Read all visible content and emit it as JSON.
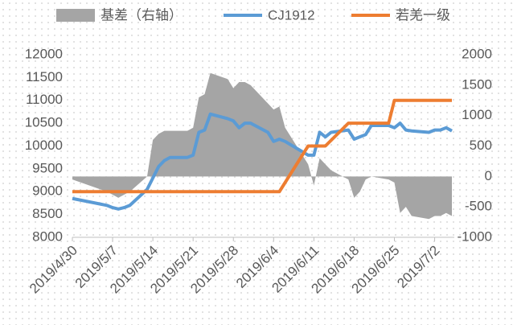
{
  "chart_data": {
    "type": "combo",
    "x": [
      "2019/4/30",
      "2019/5/6",
      "2019/5/7",
      "2019/5/8",
      "2019/5/9",
      "2019/5/10",
      "2019/5/13",
      "2019/5/14",
      "2019/5/15",
      "2019/5/16",
      "2019/5/17",
      "2019/5/20",
      "2019/5/21",
      "2019/5/22",
      "2019/5/23",
      "2019/5/24",
      "2019/5/27",
      "2019/5/28",
      "2019/5/29",
      "2019/5/30",
      "2019/5/31",
      "2019/6/3",
      "2019/6/4",
      "2019/6/5",
      "2019/6/6",
      "2019/6/10",
      "2019/6/11",
      "2019/6/12",
      "2019/6/13",
      "2019/6/14",
      "2019/6/17",
      "2019/6/18",
      "2019/6/19",
      "2019/6/20",
      "2019/6/21",
      "2019/6/24",
      "2019/6/25",
      "2019/6/26",
      "2019/6/27",
      "2019/6/28",
      "2019/7/1",
      "2019/7/2",
      "2019/7/3",
      "2019/7/4",
      "2019/7/5"
    ],
    "series": [
      {
        "name": "基差（右轴）",
        "kind": "area",
        "axis": "y2",
        "color": "#a5a5a5",
        "values": [
          -50,
          -250,
          -300,
          -350,
          -300,
          -250,
          0,
          600,
          700,
          750,
          750,
          750,
          800,
          1300,
          1350,
          1700,
          1600,
          1450,
          1550,
          1550,
          1500,
          1200,
          1100,
          1150,
          800,
          200,
          -150,
          300,
          200,
          100,
          -50,
          -350,
          -250,
          -50,
          0,
          -50,
          -100,
          -600,
          -500,
          -650,
          -700,
          -650,
          -650,
          -600,
          -650
        ]
      },
      {
        "name": "CJ1912",
        "kind": "line",
        "color": "#5b9bd5",
        "values": [
          8850,
          8700,
          8650,
          8620,
          8650,
          8700,
          9050,
          9300,
          9550,
          9680,
          9750,
          9750,
          9800,
          10300,
          10350,
          10700,
          10600,
          10550,
          10400,
          10500,
          10500,
          10300,
          10100,
          10150,
          10100,
          9800,
          9800,
          10300,
          10200,
          10300,
          10350,
          10150,
          10200,
          10250,
          10450,
          10450,
          10400,
          10500,
          10350,
          10330,
          10300,
          10350,
          10350,
          10400,
          10330
        ]
      },
      {
        "name": "若羌一级",
        "kind": "line",
        "color": "#ed7d31",
        "x": [
          "2019/4/30",
          "2019/6/5",
          "2019/6/10",
          "2019/6/13",
          "2019/6/17",
          "2019/6/24",
          "2019/6/25",
          "2019/7/5"
        ],
        "values": [
          9000,
          9000,
          10000,
          10000,
          10500,
          10500,
          11000,
          11000
        ]
      }
    ],
    "xlim": [
      "2019/4/30",
      "2019/7/5"
    ],
    "xticks": [
      "2019/4/30",
      "2019/5/7",
      "2019/5/14",
      "2019/5/21",
      "2019/5/28",
      "2019/6/4",
      "2019/6/11",
      "2019/6/18",
      "2019/6/25",
      "2019/7/2"
    ],
    "ylim": [
      8000,
      12000
    ],
    "yticks": [
      8000,
      8500,
      9000,
      9500,
      10000,
      10500,
      11000,
      11500,
      12000
    ],
    "y2lim": [
      -1000,
      2000
    ],
    "y2ticks": [
      -1000,
      -500,
      0,
      500,
      1000,
      1500,
      2000
    ],
    "legend": "top"
  }
}
